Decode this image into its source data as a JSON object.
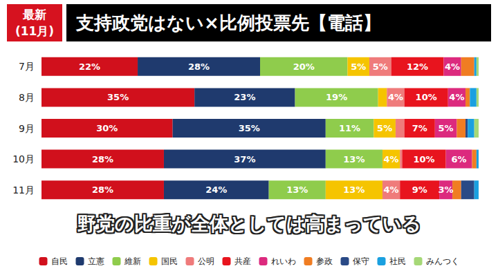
{
  "chart_data": {
    "type": "bar",
    "title": "支持政党はない×比例投票先【電話】",
    "annotations": [
      "最新",
      "(11月)",
      "野党の比重が全体としては高まっている"
    ],
    "orientation": "horizontal",
    "stacked": true,
    "data_labels": true,
    "tick_labels": "y",
    "grid": false,
    "legend": "bottom",
    "xlim": [
      0,
      100
    ],
    "categories": [
      "7月",
      "8月",
      "9月",
      "10月",
      "11月"
    ],
    "series": [
      {
        "name": "自民",
        "color": "#d1101c",
        "values": [
          22,
          35,
          30,
          28,
          28
        ],
        "value_labels": [
          "22%",
          "35%",
          "30%",
          "28%",
          "28%"
        ]
      },
      {
        "name": "立憲",
        "color": "#1f3a6e",
        "values": [
          28,
          23,
          35,
          37,
          24
        ],
        "value_labels": [
          "28%",
          "23%",
          "35%",
          "37%",
          "24%"
        ]
      },
      {
        "name": "維新",
        "color": "#8fcc4c",
        "values": [
          20,
          19,
          11,
          13,
          13
        ],
        "value_labels": [
          "20%",
          "19%",
          "11%",
          "13%",
          "13%"
        ]
      },
      {
        "name": "国民",
        "color": "#f5c400",
        "values": [
          5,
          2,
          5,
          4,
          13
        ],
        "value_labels": [
          "5%",
          null,
          "5%",
          "4%",
          "13%"
        ]
      },
      {
        "name": "公明",
        "color": "#ef7b7b",
        "values": [
          5,
          4,
          2,
          0.5,
          4
        ],
        "value_labels": [
          "5%",
          "4%",
          null,
          null,
          "4%"
        ]
      },
      {
        "name": "共産",
        "color": "#e8141e",
        "values": [
          12,
          10,
          7,
          10,
          9
        ],
        "value_labels": [
          "12%",
          "10%",
          "7%",
          "10%",
          "9%"
        ]
      },
      {
        "name": "れいわ",
        "color": "#dc2a7e",
        "values": [
          4,
          4,
          5,
          6,
          3
        ],
        "value_labels": [
          "4%",
          "4%",
          "5%",
          "6%",
          "3%"
        ]
      },
      {
        "name": "参政",
        "color": "#f07d22",
        "values": [
          3,
          1,
          2,
          1,
          2
        ],
        "value_labels": [
          null,
          null,
          null,
          null,
          null
        ]
      },
      {
        "name": "保守",
        "color": "#2a4a86",
        "values": [
          0,
          0,
          0.5,
          0,
          3
        ],
        "value_labels": [
          null,
          null,
          null,
          null,
          null
        ]
      },
      {
        "name": "社民",
        "color": "#1aa0e0",
        "values": [
          0.5,
          1.5,
          1.5,
          0.5,
          1
        ],
        "value_labels": [
          null,
          null,
          null,
          null,
          null
        ]
      },
      {
        "name": "みんつく",
        "color": "#a6d877",
        "values": [
          0.5,
          0.5,
          1,
          0,
          0
        ],
        "value_labels": [
          null,
          null,
          null,
          null,
          null
        ]
      }
    ]
  }
}
